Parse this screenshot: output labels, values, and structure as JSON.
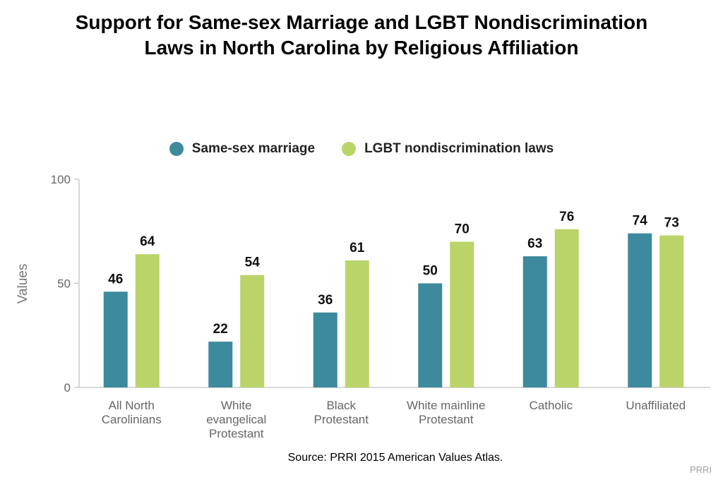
{
  "title_line1": "Support for Same-sex Marriage and LGBT Nondiscrimination",
  "title_line2": "Laws in North Carolina by Religious Affiliation",
  "source": "Source: PRRI 2015 American Values Atlas.",
  "brand": "PRRI",
  "colors": {
    "same_sex_marriage": "#3d8a9e",
    "lgbt_laws": "#bad46a",
    "axis": "#cccccc",
    "tick_text": "#666666"
  },
  "chart_data": {
    "type": "bar",
    "categories": [
      [
        "All North",
        "Carolinians"
      ],
      [
        "White",
        "evangelical",
        "Protestant"
      ],
      [
        "Black",
        "Protestant"
      ],
      [
        "White mainline",
        "Protestant"
      ],
      [
        "Catholic"
      ],
      [
        "Unaffiliated"
      ]
    ],
    "series": [
      {
        "name": "Same-sex marriage",
        "values": [
          46,
          22,
          36,
          50,
          63,
          74
        ]
      },
      {
        "name": "LGBT nondiscrimination laws",
        "values": [
          64,
          54,
          61,
          70,
          76,
          73
        ]
      }
    ],
    "ylabel": "Values",
    "ylim": [
      0,
      100
    ],
    "yticks": [
      0,
      50,
      100
    ],
    "grid": false,
    "legend_position": "top-center",
    "data_labels": true
  }
}
